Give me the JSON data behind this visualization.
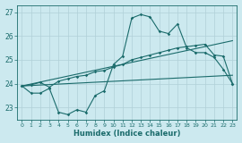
{
  "xlabel": "Humidex (Indice chaleur)",
  "bg_color": "#cce9ef",
  "grid_color": "#b0d0d8",
  "line_color": "#1a6b6b",
  "xlim": [
    -0.5,
    23.5
  ],
  "ylim": [
    22.5,
    27.3
  ],
  "yticks": [
    23,
    24,
    25,
    26,
    27
  ],
  "xticks": [
    0,
    1,
    2,
    3,
    4,
    5,
    6,
    7,
    8,
    9,
    10,
    11,
    12,
    13,
    14,
    15,
    16,
    17,
    18,
    19,
    20,
    21,
    22,
    23
  ],
  "series1_x": [
    0,
    1,
    2,
    3,
    4,
    5,
    6,
    7,
    8,
    9,
    10,
    11,
    12,
    13,
    14,
    15,
    16,
    17,
    18,
    19,
    20,
    21,
    22,
    23
  ],
  "series1_y": [
    23.9,
    23.6,
    23.6,
    23.8,
    22.8,
    22.7,
    22.9,
    22.8,
    23.5,
    23.7,
    24.8,
    25.15,
    26.75,
    26.9,
    26.8,
    26.2,
    26.1,
    26.5,
    25.5,
    25.3,
    25.3,
    25.1,
    24.6,
    24.0
  ],
  "series2_x": [
    0,
    1,
    2,
    3,
    4,
    5,
    6,
    7,
    8,
    9,
    10,
    11,
    12,
    13,
    14,
    15,
    16,
    17,
    18,
    19,
    20,
    21,
    22,
    23
  ],
  "series2_y": [
    23.9,
    23.95,
    24.05,
    23.85,
    24.1,
    24.2,
    24.3,
    24.35,
    24.5,
    24.55,
    24.7,
    24.8,
    25.0,
    25.1,
    25.2,
    25.3,
    25.4,
    25.5,
    25.55,
    25.6,
    25.65,
    25.2,
    25.15,
    24.0
  ],
  "series3_x": [
    0,
    23
  ],
  "series3_y": [
    23.9,
    25.8
  ],
  "series4_x": [
    0,
    23
  ],
  "series4_y": [
    23.9,
    24.35
  ]
}
